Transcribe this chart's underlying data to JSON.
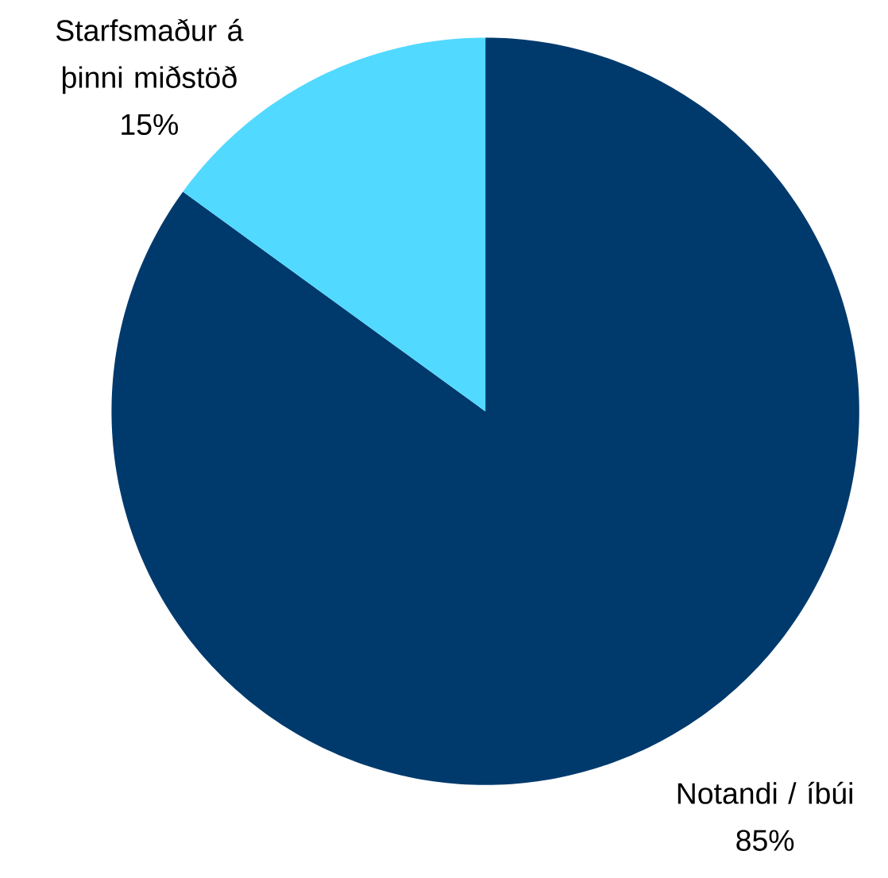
{
  "chart_data": {
    "type": "pie",
    "categories": [
      "Notandi / íbúi",
      "Starfsmaður á þinni miðstöð"
    ],
    "values": [
      85,
      15
    ],
    "value_labels": [
      "85%",
      "15%"
    ],
    "colors": [
      "#003a6d",
      "#52d9ff"
    ]
  }
}
